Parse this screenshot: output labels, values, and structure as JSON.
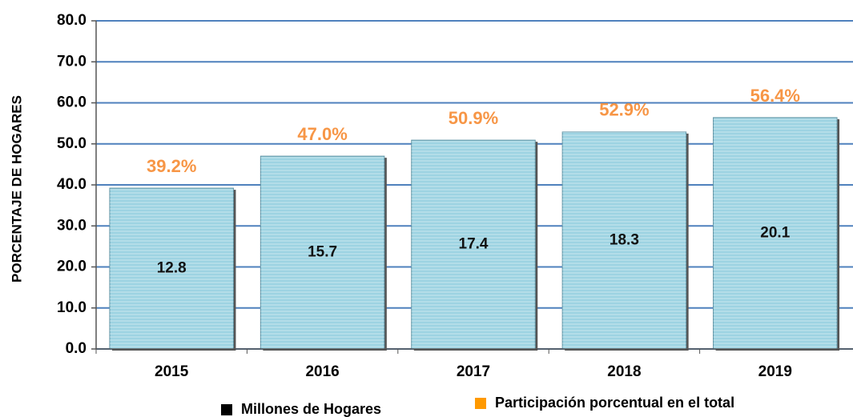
{
  "chart_data": {
    "type": "bar",
    "y_label": "PORCENTAJE DE HOGARES",
    "categories": [
      "2015",
      "2016",
      "2017",
      "2018",
      "2019"
    ],
    "series": [
      {
        "name": "Millones de Hogares",
        "color": "#000000",
        "values": [
          12.8,
          15.7,
          17.4,
          18.3,
          20.1
        ]
      },
      {
        "name": "Participación porcentual en el total",
        "color": "#ff9900",
        "values": [
          39.2,
          47.0,
          50.9,
          52.9,
          56.4
        ],
        "value_labels": [
          "39.2%",
          "47.0%",
          "50.9%",
          "52.9%",
          "56.4%"
        ]
      }
    ],
    "bar_color": "#9dd3e2",
    "ylim": [
      0,
      80
    ],
    "yticks": [
      {
        "value": 0,
        "label": "0.0"
      },
      {
        "value": 10,
        "label": "10.0"
      },
      {
        "value": 20,
        "label": "20.0"
      },
      {
        "value": 30,
        "label": "30.0"
      },
      {
        "value": 40,
        "label": "40.0"
      },
      {
        "value": 50,
        "label": "50.0"
      },
      {
        "value": 60,
        "label": "60.0"
      },
      {
        "value": 70,
        "label": "70.0"
      },
      {
        "value": 80,
        "label": "80.0"
      }
    ],
    "grid": true
  }
}
